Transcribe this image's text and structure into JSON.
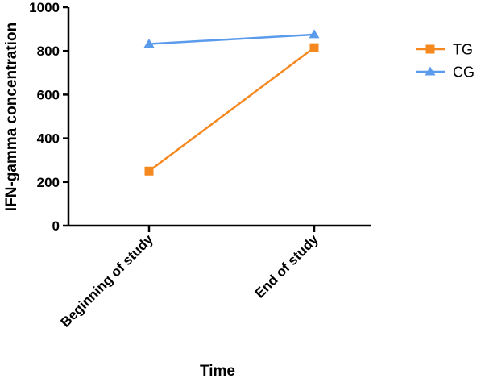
{
  "chart_data": {
    "type": "line",
    "categories": [
      "Beginning of study",
      "End of study"
    ],
    "series": [
      {
        "name": "TG",
        "values": [
          250,
          815
        ],
        "color": "#f5891f",
        "marker": "square"
      },
      {
        "name": "CG",
        "values": [
          832,
          875
        ],
        "color": "#5b9bec",
        "marker": "triangle"
      }
    ],
    "xlabel": "Time",
    "ylabel": "IFN-gamma concentration",
    "ylim": [
      0,
      1000
    ],
    "yticks": [
      0,
      200,
      400,
      600,
      800,
      1000
    ],
    "legend_position": "right",
    "grid": false
  }
}
